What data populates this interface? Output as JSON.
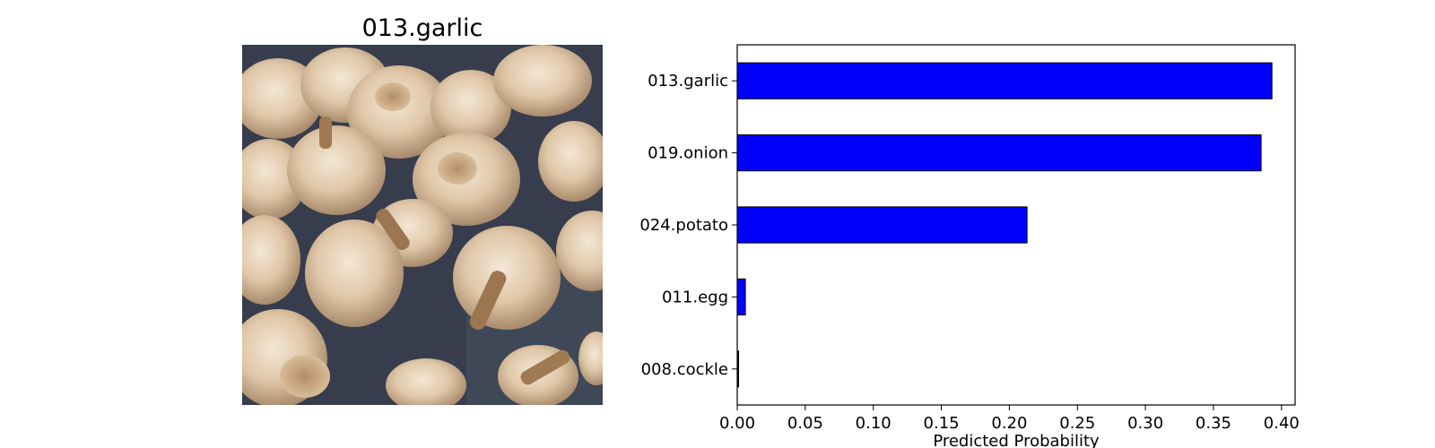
{
  "image": {
    "title": "013.garlic",
    "subject": "photo of garlic bulbs"
  },
  "chart_data": {
    "type": "bar",
    "orientation": "horizontal",
    "categories": [
      "013.garlic",
      "019.onion",
      "024.potato",
      "011.egg",
      "008.cockle"
    ],
    "values": [
      0.393,
      0.385,
      0.213,
      0.006,
      0.001
    ],
    "xlabel": "Predicted Probability",
    "ylabel": "",
    "xlim": [
      0,
      0.41
    ],
    "xticks": [
      "0.00",
      "0.05",
      "0.10",
      "0.15",
      "0.20",
      "0.25",
      "0.30",
      "0.35",
      "0.40"
    ],
    "grid": false,
    "bar_color": "#0000ff",
    "bar_edge_color": "#000000"
  }
}
